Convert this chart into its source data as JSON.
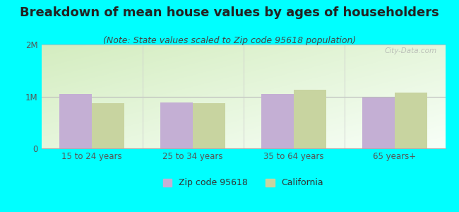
{
  "title": "Breakdown of mean house values by ages of householders",
  "subtitle": "(Note: State values scaled to Zip code 95618 population)",
  "categories": [
    "15 to 24 years",
    "25 to 34 years",
    "35 to 64 years",
    "65 years+"
  ],
  "zip_values": [
    1050000,
    880000,
    1050000,
    980000
  ],
  "ca_values": [
    870000,
    870000,
    1130000,
    1070000
  ],
  "ylim": [
    0,
    2000000
  ],
  "yticks": [
    0,
    1000000,
    2000000
  ],
  "ytick_labels": [
    "0",
    "1M",
    "2M"
  ],
  "zip_color": "#c4afd4",
  "ca_color": "#c8d4a0",
  "background_color": "#00ffff",
  "legend_zip_label": "Zip code 95618",
  "legend_ca_label": "California",
  "bar_width": 0.32,
  "title_fontsize": 13,
  "subtitle_fontsize": 9,
  "tick_fontsize": 8.5,
  "legend_fontsize": 9,
  "watermark": "City-Data.com",
  "grad_top_left": "#c8e8c0",
  "grad_bottom_right": "#f8fff8"
}
